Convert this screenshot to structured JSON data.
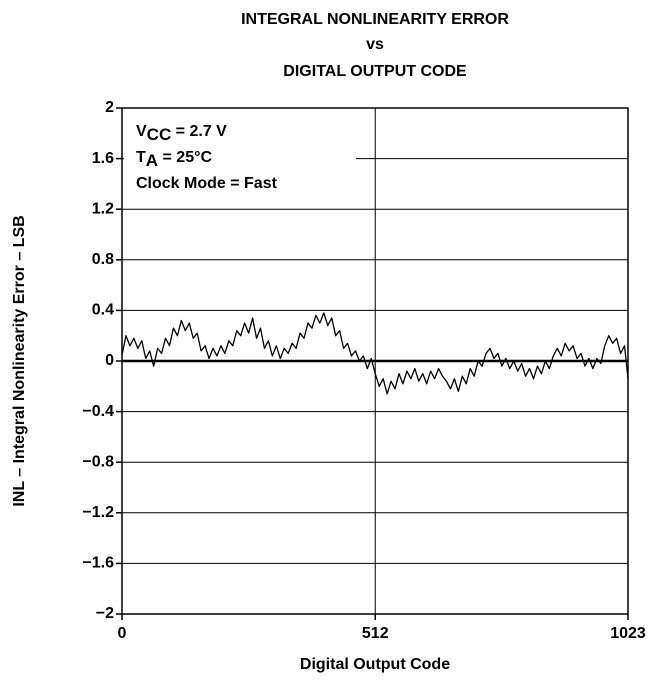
{
  "chart_data": {
    "type": "line",
    "title": [
      "INTEGRAL NONLINEARITY ERROR",
      "vs",
      "DIGITAL OUTPUT CODE"
    ],
    "xlabel": "Digital Output Code",
    "ylabel": "INL – Integral Nonlinearity Error – LSB",
    "annotation": [
      [
        "V",
        "CC",
        " = 2.7 V"
      ],
      [
        "T",
        "A",
        " = 25°C"
      ],
      [
        "Clock Mode = Fast"
      ]
    ],
    "xlim": [
      0,
      1023
    ],
    "xticks": [
      0,
      512,
      1023
    ],
    "ylim": [
      -2,
      2
    ],
    "yticks": [
      {
        "value": -2,
        "label": "−2"
      },
      {
        "value": -1.6,
        "label": "−1.6"
      },
      {
        "value": -1.2,
        "label": "−1.2"
      },
      {
        "value": -0.8,
        "label": "−0.8"
      },
      {
        "value": -0.4,
        "label": "−0.4"
      },
      0,
      0.4,
      0.8,
      1.2,
      1.6,
      2
    ],
    "grid": true,
    "x": [
      0,
      8,
      16,
      24,
      32,
      40,
      48,
      56,
      64,
      72,
      80,
      88,
      96,
      104,
      112,
      120,
      128,
      136,
      144,
      152,
      160,
      168,
      176,
      184,
      192,
      200,
      208,
      216,
      224,
      232,
      240,
      248,
      256,
      264,
      272,
      280,
      288,
      296,
      304,
      312,
      320,
      328,
      336,
      344,
      352,
      360,
      368,
      376,
      384,
      392,
      400,
      408,
      416,
      424,
      432,
      440,
      448,
      456,
      464,
      472,
      480,
      488,
      496,
      504,
      512,
      520,
      528,
      536,
      544,
      552,
      560,
      568,
      576,
      584,
      592,
      600,
      608,
      616,
      624,
      632,
      640,
      648,
      656,
      664,
      672,
      680,
      688,
      696,
      704,
      712,
      720,
      728,
      736,
      744,
      752,
      760,
      768,
      776,
      784,
      792,
      800,
      808,
      816,
      824,
      832,
      840,
      848,
      856,
      864,
      872,
      880,
      888,
      896,
      904,
      912,
      920,
      928,
      936,
      944,
      952,
      960,
      968,
      976,
      984,
      992,
      1000,
      1008,
      1016,
      1023
    ],
    "series": [
      {
        "color": "#000000",
        "values": [
          0.05,
          0.2,
          0.12,
          0.18,
          0.1,
          0.16,
          0.02,
          0.08,
          -0.04,
          0.1,
          0.06,
          0.18,
          0.12,
          0.26,
          0.2,
          0.32,
          0.24,
          0.3,
          0.18,
          0.22,
          0.08,
          0.12,
          0.02,
          0.1,
          0.04,
          0.12,
          0.06,
          0.16,
          0.12,
          0.24,
          0.2,
          0.3,
          0.22,
          0.34,
          0.18,
          0.26,
          0.1,
          0.16,
          0.04,
          0.12,
          0.02,
          0.1,
          0.06,
          0.14,
          0.1,
          0.22,
          0.18,
          0.3,
          0.26,
          0.36,
          0.3,
          0.38,
          0.28,
          0.34,
          0.2,
          0.24,
          0.1,
          0.14,
          0.04,
          0.08,
          0,
          0.04,
          -0.06,
          0.02,
          -0.1,
          -0.2,
          -0.14,
          -0.26,
          -0.16,
          -0.22,
          -0.1,
          -0.18,
          -0.08,
          -0.14,
          -0.06,
          -0.16,
          -0.1,
          -0.18,
          -0.08,
          -0.14,
          -0.06,
          -0.12,
          -0.16,
          -0.22,
          -0.14,
          -0.24,
          -0.12,
          -0.18,
          -0.06,
          -0.12,
          0,
          -0.04,
          0.06,
          0.1,
          0.02,
          0.06,
          -0.04,
          0.02,
          -0.06,
          0,
          -0.08,
          -0.02,
          -0.12,
          -0.06,
          -0.14,
          -0.04,
          -0.1,
          0,
          -0.06,
          0.04,
          0.1,
          0.04,
          0.14,
          0.08,
          0.12,
          0.02,
          0.06,
          -0.04,
          0.02,
          -0.06,
          0.02,
          -0.02,
          0.12,
          0.2,
          0.14,
          0.18,
          0.06,
          0.12,
          -0.14
        ]
      }
    ]
  }
}
